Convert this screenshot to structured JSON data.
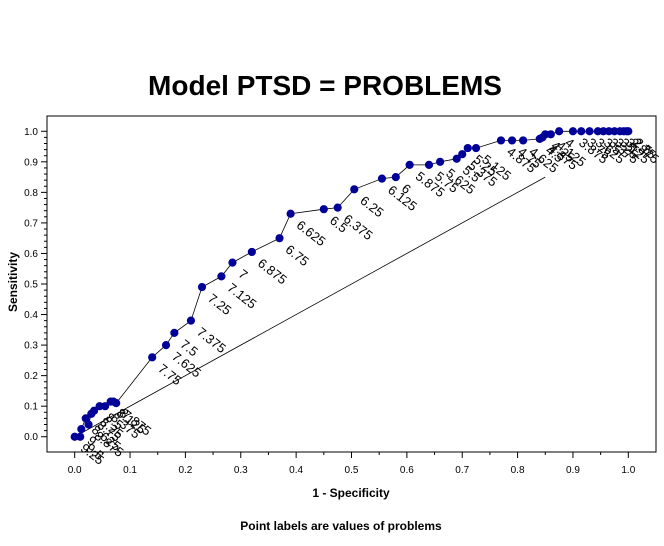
{
  "chart_data": {
    "type": "line",
    "title": "Model PTSD = PROBLEMS",
    "xlabel": "1 - Specificity",
    "ylabel": "Sensitivity",
    "footnote": "Point labels are values of problems",
    "xlim": [
      -0.05,
      1.05
    ],
    "ylim": [
      -0.05,
      1.05
    ],
    "x_ticks": [
      "0.0",
      "0.1",
      "0.2",
      "0.3",
      "0.4",
      "0.5",
      "0.6",
      "0.7",
      "0.8",
      "0.9",
      "1.0"
    ],
    "y_ticks": [
      "0.0",
      "0.1",
      "0.2",
      "0.3",
      "0.4",
      "0.5",
      "0.6",
      "0.7",
      "0.8",
      "0.9",
      "1.0"
    ],
    "marker_color": "#000099",
    "line_color": "#000000",
    "reference_line": {
      "x": [
        0.0,
        0.85
      ],
      "y": [
        0.0,
        0.85
      ]
    },
    "points": [
      {
        "x": 0.0,
        "y": 0.0,
        "label": "9.25"
      },
      {
        "x": 0.01,
        "y": 0.0,
        "label": "9.5"
      },
      {
        "x": 0.012,
        "y": 0.025,
        "label": "9"
      },
      {
        "x": 0.02,
        "y": 0.06,
        "label": "8.625"
      },
      {
        "x": 0.025,
        "y": 0.04,
        "label": "8.875"
      },
      {
        "x": 0.03,
        "y": 0.075,
        "label": "8.75"
      },
      {
        "x": 0.035,
        "y": 0.085,
        "label": "8.25"
      },
      {
        "x": 0.045,
        "y": 0.1,
        "label": "8.5"
      },
      {
        "x": 0.055,
        "y": 0.1,
        "label": "8.375"
      },
      {
        "x": 0.065,
        "y": 0.115,
        "label": "8.125"
      },
      {
        "x": 0.07,
        "y": 0.115,
        "label": "8"
      },
      {
        "x": 0.075,
        "y": 0.11,
        "label": "7.875"
      },
      {
        "x": 0.14,
        "y": 0.26,
        "label": "7.75"
      },
      {
        "x": 0.165,
        "y": 0.3,
        "label": "7.625"
      },
      {
        "x": 0.18,
        "y": 0.34,
        "label": "7.5"
      },
      {
        "x": 0.21,
        "y": 0.38,
        "label": "7.375"
      },
      {
        "x": 0.23,
        "y": 0.49,
        "label": "7.25"
      },
      {
        "x": 0.265,
        "y": 0.525,
        "label": "7.125"
      },
      {
        "x": 0.285,
        "y": 0.57,
        "label": "7"
      },
      {
        "x": 0.32,
        "y": 0.605,
        "label": "6.875"
      },
      {
        "x": 0.37,
        "y": 0.65,
        "label": "6.75"
      },
      {
        "x": 0.39,
        "y": 0.73,
        "label": "6.625"
      },
      {
        "x": 0.45,
        "y": 0.745,
        "label": "6.5"
      },
      {
        "x": 0.475,
        "y": 0.75,
        "label": "6.375"
      },
      {
        "x": 0.505,
        "y": 0.81,
        "label": "6.25"
      },
      {
        "x": 0.555,
        "y": 0.845,
        "label": "6.125"
      },
      {
        "x": 0.58,
        "y": 0.85,
        "label": "6"
      },
      {
        "x": 0.605,
        "y": 0.89,
        "label": "5.875"
      },
      {
        "x": 0.64,
        "y": 0.89,
        "label": "5.75"
      },
      {
        "x": 0.66,
        "y": 0.9,
        "label": "5.625"
      },
      {
        "x": 0.69,
        "y": 0.91,
        "label": "5.5"
      },
      {
        "x": 0.7,
        "y": 0.925,
        "label": "5.375"
      },
      {
        "x": 0.71,
        "y": 0.945,
        "label": "5.25"
      },
      {
        "x": 0.725,
        "y": 0.945,
        "label": "5.125"
      },
      {
        "x": 0.77,
        "y": 0.97,
        "label": "4.875"
      },
      {
        "x": 0.79,
        "y": 0.97,
        "label": "4.75"
      },
      {
        "x": 0.81,
        "y": 0.97,
        "label": "4.625"
      },
      {
        "x": 0.84,
        "y": 0.975,
        "label": "4.5"
      },
      {
        "x": 0.845,
        "y": 0.98,
        "label": "4.375"
      },
      {
        "x": 0.85,
        "y": 0.99,
        "label": "4.25"
      },
      {
        "x": 0.86,
        "y": 0.99,
        "label": "4.125"
      },
      {
        "x": 0.875,
        "y": 1.0,
        "label": "4"
      },
      {
        "x": 0.9,
        "y": 1.0,
        "label": "3.875"
      },
      {
        "x": 0.915,
        "y": 1.0,
        "label": "3.75"
      },
      {
        "x": 0.93,
        "y": 1.0,
        "label": "3.625"
      },
      {
        "x": 0.945,
        "y": 1.0,
        "label": "3.5"
      },
      {
        "x": 0.955,
        "y": 1.0,
        "label": "3.375"
      },
      {
        "x": 0.965,
        "y": 1.0,
        "label": "3.25"
      },
      {
        "x": 0.975,
        "y": 1.0,
        "label": "3.125"
      },
      {
        "x": 0.985,
        "y": 1.0,
        "label": "3"
      },
      {
        "x": 0.992,
        "y": 1.0,
        "label": "2.875"
      },
      {
        "x": 0.997,
        "y": 1.0,
        "label": "2.75"
      },
      {
        "x": 1.0,
        "y": 1.0,
        "label": "2.5"
      }
    ]
  }
}
